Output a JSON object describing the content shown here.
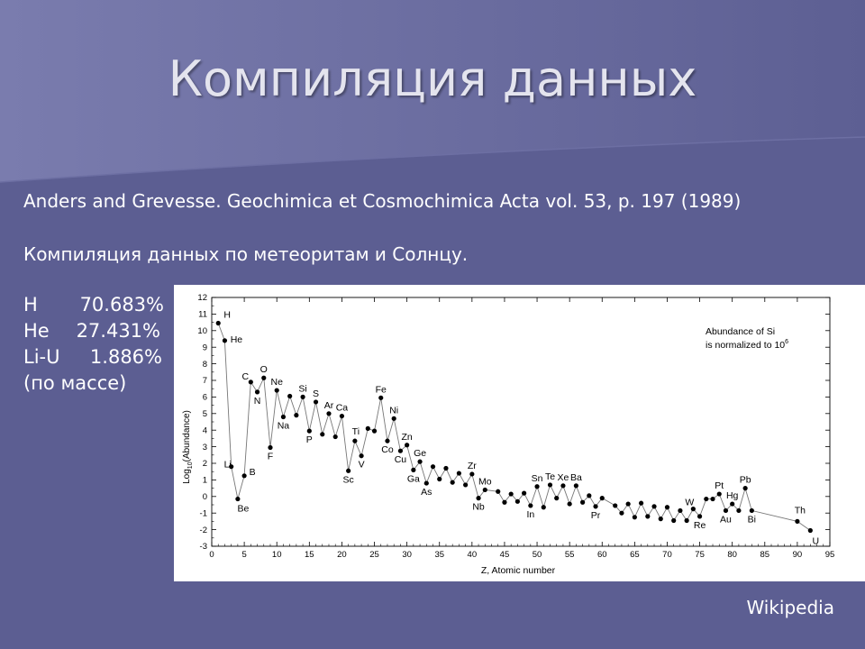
{
  "slide": {
    "title": "Компиляция данных",
    "reference": "Anders and Grevesse. Geochimica et Cosmochimica Acta vol. 53, p. 197 (1989)",
    "subtitle": "Компиляция данных по метеоритам и Солнцу.",
    "composition": [
      {
        "element": "H",
        "value": "70.683%"
      },
      {
        "element": "He",
        "value": "27.431%"
      },
      {
        "element": "Li-U",
        "value": "1.886%"
      }
    ],
    "composition_note": "(по массе)",
    "credit": "Wikipedia",
    "colors": {
      "background": "#5c5e92",
      "text": "#ffffff",
      "chart_background": "#ffffff"
    }
  },
  "chart_data": {
    "type": "line",
    "xlabel": "Z, Atomic number",
    "ylabel": "Log10(Abundance)",
    "xlim": [
      0,
      95
    ],
    "ylim": [
      -3,
      12
    ],
    "xticks": [
      0,
      5,
      10,
      15,
      20,
      25,
      30,
      35,
      40,
      45,
      50,
      55,
      60,
      65,
      70,
      75,
      80,
      85,
      90,
      95
    ],
    "yticks": [
      -3,
      -2,
      -1,
      0,
      1,
      2,
      3,
      4,
      5,
      6,
      7,
      8,
      9,
      10,
      11,
      12
    ],
    "annotation": [
      "Abundance of Si",
      "is normalized to 10^6"
    ],
    "grid": false,
    "series": [
      {
        "name": "",
        "points": [
          [
            1,
            10.45
          ],
          [
            2,
            9.4
          ],
          [
            3,
            1.8
          ],
          [
            4,
            -0.15
          ],
          [
            5,
            1.25
          ],
          [
            6,
            6.9
          ],
          [
            7,
            6.3
          ],
          [
            8,
            7.15
          ],
          [
            9,
            2.95
          ],
          [
            10,
            6.4
          ],
          [
            11,
            4.8
          ],
          [
            12,
            6.05
          ],
          [
            13,
            4.9
          ],
          [
            14,
            6.0
          ],
          [
            15,
            3.95
          ],
          [
            16,
            5.7
          ],
          [
            17,
            3.75
          ],
          [
            18,
            5.0
          ],
          [
            19,
            3.6
          ],
          [
            20,
            4.85
          ],
          [
            21,
            1.55
          ],
          [
            22,
            3.35
          ],
          [
            23,
            2.45
          ],
          [
            24,
            4.1
          ],
          [
            25,
            3.95
          ],
          [
            26,
            5.95
          ],
          [
            27,
            3.35
          ],
          [
            28,
            4.7
          ],
          [
            29,
            2.75
          ],
          [
            30,
            3.1
          ],
          [
            31,
            1.6
          ],
          [
            32,
            2.1
          ],
          [
            33,
            0.8
          ],
          [
            34,
            1.8
          ],
          [
            35,
            1.05
          ],
          [
            36,
            1.7
          ],
          [
            37,
            0.85
          ],
          [
            38,
            1.4
          ],
          [
            39,
            0.7
          ],
          [
            40,
            1.35
          ],
          [
            41,
            -0.1
          ],
          [
            42,
            0.4
          ],
          [
            44,
            0.3
          ],
          [
            45,
            -0.35
          ],
          [
            46,
            0.15
          ],
          [
            47,
            -0.3
          ],
          [
            48,
            0.2
          ],
          [
            49,
            -0.55
          ],
          [
            50,
            0.6
          ],
          [
            51,
            -0.65
          ],
          [
            52,
            0.7
          ],
          [
            53,
            -0.1
          ],
          [
            54,
            0.65
          ],
          [
            55,
            -0.45
          ],
          [
            56,
            0.65
          ],
          [
            57,
            -0.35
          ],
          [
            58,
            0.05
          ],
          [
            59,
            -0.6
          ],
          [
            60,
            -0.1
          ],
          [
            62,
            -0.55
          ],
          [
            63,
            -1.0
          ],
          [
            64,
            -0.45
          ],
          [
            65,
            -1.25
          ],
          [
            66,
            -0.4
          ],
          [
            67,
            -1.2
          ],
          [
            68,
            -0.6
          ],
          [
            69,
            -1.35
          ],
          [
            70,
            -0.65
          ],
          [
            71,
            -1.45
          ],
          [
            72,
            -0.85
          ],
          [
            73,
            -1.45
          ],
          [
            74,
            -0.75
          ],
          [
            75,
            -1.2
          ],
          [
            76,
            -0.15
          ],
          [
            77,
            -0.15
          ],
          [
            78,
            0.15
          ],
          [
            79,
            -0.85
          ],
          [
            80,
            -0.45
          ],
          [
            81,
            -0.85
          ],
          [
            82,
            0.5
          ],
          [
            83,
            -0.85
          ],
          [
            90,
            -1.5
          ],
          [
            92,
            -2.05
          ]
        ]
      }
    ],
    "point_labels": [
      {
        "text": "H",
        "x": 1,
        "y": 10.45
      },
      {
        "text": "He",
        "x": 2,
        "y": 9.4
      },
      {
        "text": "Li",
        "x": 3,
        "y": 1.8
      },
      {
        "text": "Be",
        "x": 4,
        "y": -0.15
      },
      {
        "text": "B",
        "x": 5,
        "y": 1.25
      },
      {
        "text": "C",
        "x": 6,
        "y": 6.9
      },
      {
        "text": "N",
        "x": 7,
        "y": 6.3
      },
      {
        "text": "O",
        "x": 8,
        "y": 7.15
      },
      {
        "text": "F",
        "x": 9,
        "y": 2.95
      },
      {
        "text": "Ne",
        "x": 10,
        "y": 6.4
      },
      {
        "text": "Na",
        "x": 11,
        "y": 4.8
      },
      {
        "text": "Si",
        "x": 14,
        "y": 6.0
      },
      {
        "text": "P",
        "x": 15,
        "y": 3.95
      },
      {
        "text": "S",
        "x": 16,
        "y": 5.7
      },
      {
        "text": "Ar",
        "x": 18,
        "y": 5.0
      },
      {
        "text": "Ca",
        "x": 20,
        "y": 4.85
      },
      {
        "text": "Sc",
        "x": 21,
        "y": 1.55
      },
      {
        "text": "Ti",
        "x": 22,
        "y": 3.35
      },
      {
        "text": "V",
        "x": 23,
        "y": 2.45
      },
      {
        "text": "Fe",
        "x": 26,
        "y": 5.95
      },
      {
        "text": "Co",
        "x": 27,
        "y": 3.35
      },
      {
        "text": "Ni",
        "x": 28,
        "y": 4.7
      },
      {
        "text": "Cu",
        "x": 29,
        "y": 2.75
      },
      {
        "text": "Zn",
        "x": 30,
        "y": 3.1
      },
      {
        "text": "Ga",
        "x": 31,
        "y": 1.6
      },
      {
        "text": "Ge",
        "x": 32,
        "y": 2.1
      },
      {
        "text": "As",
        "x": 33,
        "y": 0.8
      },
      {
        "text": "Zr",
        "x": 40,
        "y": 1.35
      },
      {
        "text": "Nb",
        "x": 41,
        "y": -0.1
      },
      {
        "text": "Mo",
        "x": 42,
        "y": 0.4
      },
      {
        "text": "Sn",
        "x": 50,
        "y": 0.6
      },
      {
        "text": "In",
        "x": 49,
        "y": -0.55
      },
      {
        "text": "Te",
        "x": 52,
        "y": 0.7
      },
      {
        "text": "Xe",
        "x": 54,
        "y": 0.65
      },
      {
        "text": "Ba",
        "x": 56,
        "y": 0.65
      },
      {
        "text": "Pr",
        "x": 59,
        "y": -0.6
      },
      {
        "text": "W",
        "x": 74,
        "y": -0.75
      },
      {
        "text": "Re",
        "x": 75,
        "y": -1.2
      },
      {
        "text": "Pt",
        "x": 78,
        "y": 0.15
      },
      {
        "text": "Au",
        "x": 79,
        "y": -0.85
      },
      {
        "text": "Hg",
        "x": 80,
        "y": -0.45
      },
      {
        "text": "Pb",
        "x": 82,
        "y": 0.5
      },
      {
        "text": "Bi",
        "x": 83,
        "y": -0.85
      },
      {
        "text": "Th",
        "x": 90,
        "y": -1.5
      },
      {
        "text": "U",
        "x": 92,
        "y": -2.05
      }
    ]
  }
}
